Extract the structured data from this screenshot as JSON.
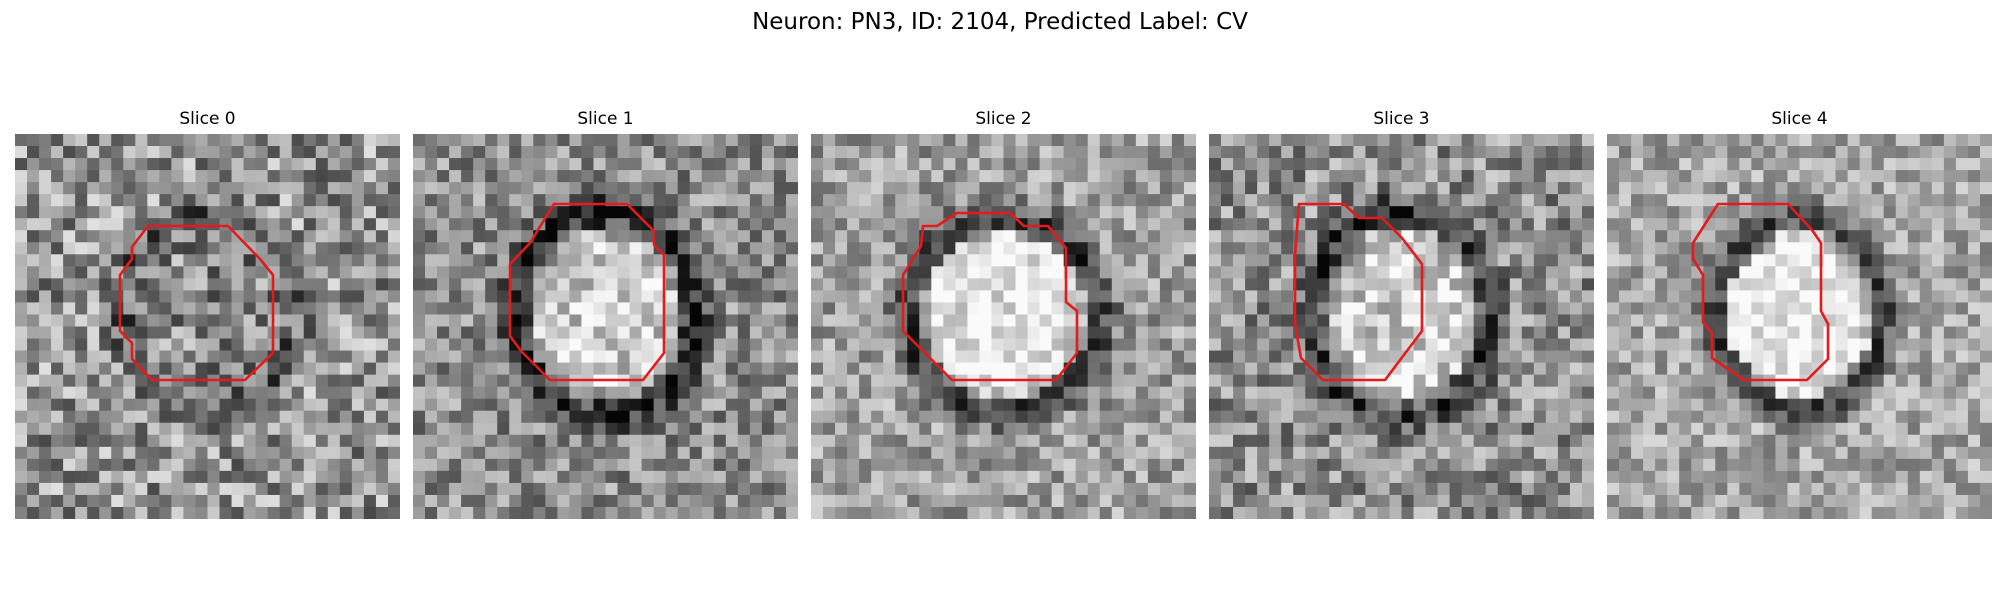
{
  "figure": {
    "title": "Neuron: PN3, ID: 2104, Predicted Label: CV"
  },
  "slices": [
    {
      "title": "Slice 0"
    },
    {
      "title": "Slice 1"
    },
    {
      "title": "Slice 2"
    },
    {
      "title": "Slice 3"
    },
    {
      "title": "Slice 4"
    }
  ],
  "colors": {
    "contour": "#e41a1c",
    "background": "#ffffff"
  }
}
